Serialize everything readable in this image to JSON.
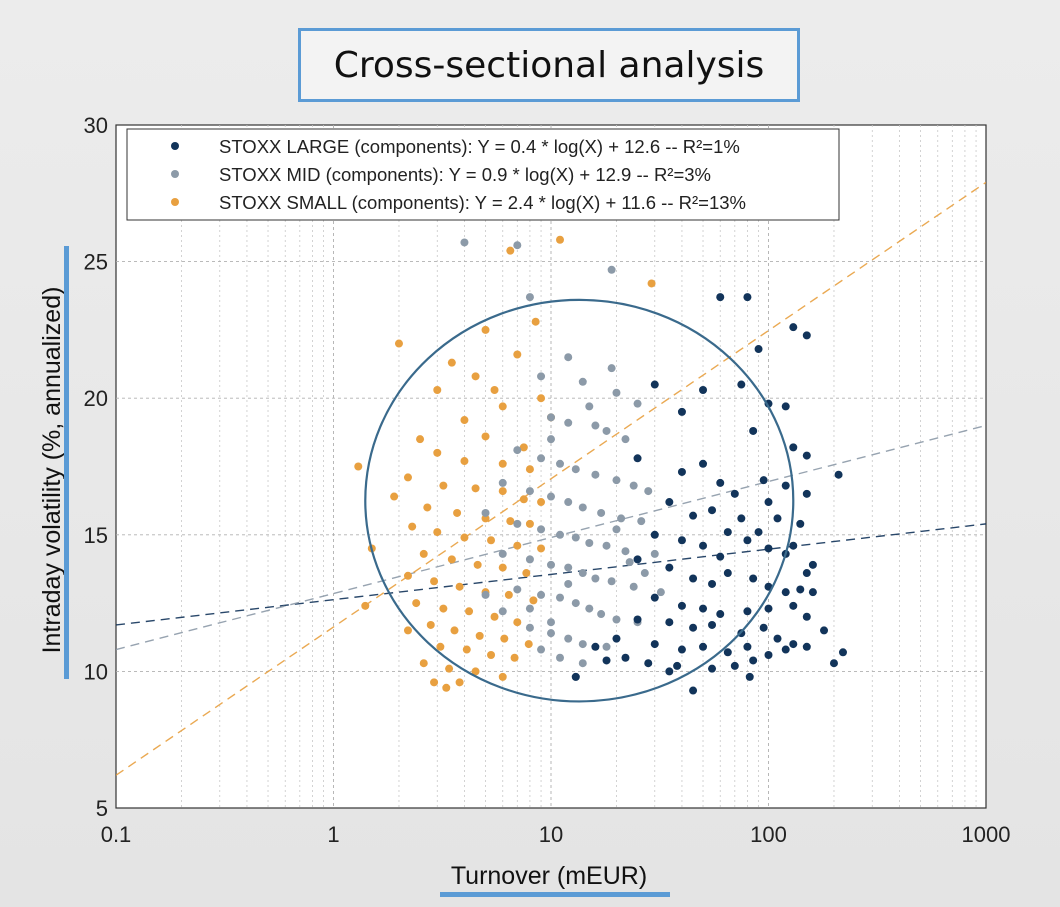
{
  "title": "Cross-sectional analysis",
  "colors": {
    "large": "#12345a",
    "mid": "#8c9aa8",
    "small": "#e8a040",
    "ellipse": "#3a6a8c",
    "accent": "#5b9bd5"
  },
  "chart_data": {
    "type": "scatter",
    "title": "",
    "xlabel": "Turnover (mEUR)",
    "ylabel": "Intraday volatility (%, annualized)",
    "x_scale": "log",
    "xlim": [
      0.1,
      1000
    ],
    "ylim": [
      5,
      30
    ],
    "x_ticks": [
      "0.1",
      "1",
      "10",
      "100",
      "1000"
    ],
    "y_ticks": [
      "5",
      "10",
      "15",
      "20",
      "25",
      "30"
    ],
    "grid": true,
    "legend_position": "top-left",
    "series": [
      {
        "name": "STOXX LARGE (components): Y = 0.4 * log(X) + 12.6 -- R²=1%",
        "color": "#12345a",
        "trend": {
          "slope": 0.4,
          "intercept": 12.6,
          "x": [
            0.1,
            1000
          ],
          "y": [
            11.7,
            15.4
          ]
        },
        "points": [
          [
            60,
            23.7
          ],
          [
            80,
            23.7
          ],
          [
            130,
            22.6
          ],
          [
            150,
            22.3
          ],
          [
            90,
            21.8
          ],
          [
            30,
            20.5
          ],
          [
            50,
            20.3
          ],
          [
            75,
            20.5
          ],
          [
            100,
            19.8
          ],
          [
            120,
            19.7
          ],
          [
            40,
            19.5
          ],
          [
            85,
            18.8
          ],
          [
            130,
            18.2
          ],
          [
            150,
            17.9
          ],
          [
            210,
            17.2
          ],
          [
            95,
            17.0
          ],
          [
            60,
            16.9
          ],
          [
            50,
            17.6
          ],
          [
            40,
            17.3
          ],
          [
            25,
            17.8
          ],
          [
            70,
            16.5
          ],
          [
            100,
            16.2
          ],
          [
            150,
            16.5
          ],
          [
            120,
            16.8
          ],
          [
            35,
            16.2
          ],
          [
            45,
            15.7
          ],
          [
            55,
            15.9
          ],
          [
            65,
            15.1
          ],
          [
            75,
            15.6
          ],
          [
            90,
            15.1
          ],
          [
            110,
            15.6
          ],
          [
            140,
            15.4
          ],
          [
            30,
            15.0
          ],
          [
            40,
            14.8
          ],
          [
            50,
            14.6
          ],
          [
            60,
            14.2
          ],
          [
            80,
            14.8
          ],
          [
            100,
            14.5
          ],
          [
            120,
            14.3
          ],
          [
            130,
            14.6
          ],
          [
            150,
            13.6
          ],
          [
            160,
            13.9
          ],
          [
            25,
            14.1
          ],
          [
            35,
            13.8
          ],
          [
            45,
            13.4
          ],
          [
            55,
            13.2
          ],
          [
            65,
            13.6
          ],
          [
            85,
            13.4
          ],
          [
            100,
            13.1
          ],
          [
            120,
            12.9
          ],
          [
            140,
            13.0
          ],
          [
            160,
            12.9
          ],
          [
            30,
            12.7
          ],
          [
            40,
            12.4
          ],
          [
            50,
            12.3
          ],
          [
            60,
            12.1
          ],
          [
            80,
            12.2
          ],
          [
            100,
            12.3
          ],
          [
            130,
            12.4
          ],
          [
            150,
            12.0
          ],
          [
            25,
            11.9
          ],
          [
            35,
            11.8
          ],
          [
            45,
            11.6
          ],
          [
            55,
            11.7
          ],
          [
            75,
            11.4
          ],
          [
            95,
            11.6
          ],
          [
            110,
            11.2
          ],
          [
            130,
            11.0
          ],
          [
            180,
            11.5
          ],
          [
            30,
            11.0
          ],
          [
            40,
            10.8
          ],
          [
            50,
            10.9
          ],
          [
            65,
            10.7
          ],
          [
            80,
            10.9
          ],
          [
            100,
            10.6
          ],
          [
            120,
            10.8
          ],
          [
            150,
            10.9
          ],
          [
            22,
            10.5
          ],
          [
            28,
            10.3
          ],
          [
            38,
            10.2
          ],
          [
            55,
            10.1
          ],
          [
            70,
            10.2
          ],
          [
            85,
            10.4
          ],
          [
            200,
            10.3
          ],
          [
            220,
            10.7
          ],
          [
            18,
            10.4
          ],
          [
            13,
            9.8
          ],
          [
            45,
            9.3
          ],
          [
            82,
            9.8
          ],
          [
            16,
            10.9
          ],
          [
            20,
            11.2
          ],
          [
            35,
            10.0
          ]
        ]
      },
      {
        "name": "STOXX MID (components): Y = 0.9 * log(X) + 12.9 -- R²=3%",
        "color": "#8c9aa8",
        "trend": {
          "slope": 0.9,
          "intercept": 12.9,
          "x": [
            0.1,
            1000
          ],
          "y": [
            10.8,
            19.0
          ]
        },
        "points": [
          [
            4,
            25.7
          ],
          [
            7,
            25.6
          ],
          [
            19,
            24.7
          ],
          [
            8,
            23.7
          ],
          [
            12,
            21.5
          ],
          [
            19,
            21.1
          ],
          [
            9,
            20.8
          ],
          [
            14,
            20.6
          ],
          [
            20,
            20.2
          ],
          [
            25,
            19.8
          ],
          [
            15,
            19.7
          ],
          [
            10,
            19.3
          ],
          [
            12,
            19.1
          ],
          [
            18,
            18.8
          ],
          [
            22,
            18.5
          ],
          [
            7,
            18.1
          ],
          [
            9,
            17.8
          ],
          [
            11,
            17.6
          ],
          [
            13,
            17.4
          ],
          [
            16,
            17.2
          ],
          [
            20,
            17.0
          ],
          [
            24,
            16.8
          ],
          [
            28,
            16.6
          ],
          [
            8,
            16.6
          ],
          [
            10,
            16.4
          ],
          [
            12,
            16.2
          ],
          [
            14,
            16.0
          ],
          [
            17,
            15.8
          ],
          [
            21,
            15.6
          ],
          [
            26,
            15.5
          ],
          [
            7,
            15.4
          ],
          [
            9,
            15.2
          ],
          [
            11,
            15.0
          ],
          [
            13,
            14.9
          ],
          [
            15,
            14.7
          ],
          [
            18,
            14.6
          ],
          [
            22,
            14.4
          ],
          [
            30,
            14.3
          ],
          [
            6,
            14.3
          ],
          [
            8,
            14.1
          ],
          [
            10,
            13.9
          ],
          [
            12,
            13.8
          ],
          [
            14,
            13.6
          ],
          [
            16,
            13.4
          ],
          [
            19,
            13.3
          ],
          [
            24,
            13.1
          ],
          [
            7,
            13.0
          ],
          [
            9,
            12.8
          ],
          [
            11,
            12.7
          ],
          [
            13,
            12.5
          ],
          [
            15,
            12.3
          ],
          [
            17,
            12.1
          ],
          [
            20,
            11.9
          ],
          [
            25,
            11.8
          ],
          [
            8,
            11.6
          ],
          [
            10,
            11.4
          ],
          [
            12,
            11.2
          ],
          [
            14,
            11.0
          ],
          [
            18,
            10.9
          ],
          [
            6,
            12.2
          ],
          [
            5,
            12.8
          ],
          [
            9,
            10.8
          ],
          [
            11,
            10.5
          ],
          [
            14,
            10.3
          ],
          [
            13,
            9.8
          ],
          [
            10,
            18.5
          ],
          [
            16,
            19.0
          ],
          [
            20,
            15.2
          ],
          [
            23,
            14.0
          ],
          [
            27,
            13.6
          ],
          [
            32,
            12.9
          ],
          [
            6,
            16.9
          ],
          [
            5,
            15.8
          ],
          [
            10,
            11.8
          ],
          [
            12,
            13.2
          ],
          [
            8,
            12.3
          ]
        ]
      },
      {
        "name": "STOXX SMALL (components): Y = 2.4 * log(X) + 11.6 -- R²=13%",
        "color": "#e8a040",
        "trend": {
          "slope": 2.4,
          "intercept": 11.6,
          "x": [
            0.1,
            1000
          ],
          "y": [
            6.2,
            27.9
          ]
        },
        "points": [
          [
            6.5,
            25.4
          ],
          [
            11,
            25.8
          ],
          [
            29,
            24.2
          ],
          [
            8.5,
            22.8
          ],
          [
            5,
            22.5
          ],
          [
            2,
            22.0
          ],
          [
            3.5,
            21.3
          ],
          [
            7,
            21.6
          ],
          [
            4.5,
            20.8
          ],
          [
            5.5,
            20.3
          ],
          [
            3,
            20.3
          ],
          [
            9,
            20.0
          ],
          [
            6,
            19.7
          ],
          [
            4,
            19.2
          ],
          [
            10,
            19.3
          ],
          [
            2.5,
            18.5
          ],
          [
            5,
            18.6
          ],
          [
            7.5,
            18.2
          ],
          [
            3,
            18.0
          ],
          [
            4,
            17.7
          ],
          [
            6,
            17.6
          ],
          [
            8,
            17.4
          ],
          [
            1.3,
            17.5
          ],
          [
            2.2,
            17.1
          ],
          [
            3.2,
            16.8
          ],
          [
            4.5,
            16.7
          ],
          [
            6,
            16.6
          ],
          [
            7.5,
            16.3
          ],
          [
            9,
            16.2
          ],
          [
            1.9,
            16.4
          ],
          [
            2.7,
            16.0
          ],
          [
            3.7,
            15.8
          ],
          [
            5,
            15.6
          ],
          [
            6.5,
            15.5
          ],
          [
            8,
            15.4
          ],
          [
            2.3,
            15.3
          ],
          [
            3,
            15.1
          ],
          [
            4,
            14.9
          ],
          [
            5.3,
            14.8
          ],
          [
            7,
            14.6
          ],
          [
            9,
            14.5
          ],
          [
            1.5,
            14.5
          ],
          [
            2.6,
            14.3
          ],
          [
            3.5,
            14.1
          ],
          [
            4.6,
            13.9
          ],
          [
            6,
            13.8
          ],
          [
            7.7,
            13.6
          ],
          [
            2.2,
            13.5
          ],
          [
            2.9,
            13.3
          ],
          [
            3.8,
            13.1
          ],
          [
            5,
            12.9
          ],
          [
            6.4,
            12.8
          ],
          [
            8.3,
            12.6
          ],
          [
            2.4,
            12.5
          ],
          [
            3.2,
            12.3
          ],
          [
            4.2,
            12.2
          ],
          [
            5.5,
            12.0
          ],
          [
            7,
            11.8
          ],
          [
            1.4,
            12.4
          ],
          [
            2.8,
            11.7
          ],
          [
            3.6,
            11.5
          ],
          [
            4.7,
            11.3
          ],
          [
            6.1,
            11.2
          ],
          [
            7.9,
            11.0
          ],
          [
            2.2,
            11.5
          ],
          [
            3.1,
            10.9
          ],
          [
            4.1,
            10.8
          ],
          [
            5.3,
            10.6
          ],
          [
            6.8,
            10.5
          ],
          [
            2.6,
            10.3
          ],
          [
            3.4,
            10.1
          ],
          [
            4.5,
            10.0
          ],
          [
            3.8,
            9.6
          ],
          [
            2.9,
            9.6
          ],
          [
            3.3,
            9.4
          ],
          [
            6,
            9.8
          ]
        ]
      }
    ],
    "ellipse": {
      "center": [
        14,
        16.2
      ],
      "x_range": [
        1.4,
        130
      ],
      "y_range": [
        8.9,
        23.6
      ]
    }
  }
}
